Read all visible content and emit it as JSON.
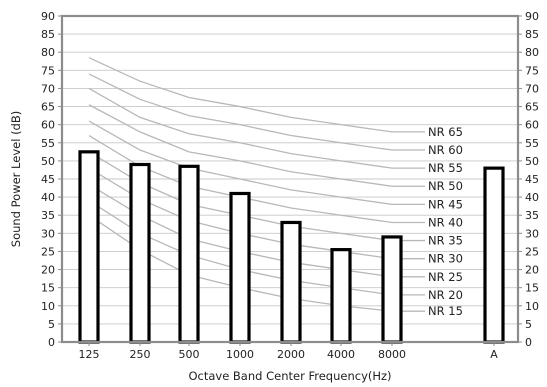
{
  "chart_data": {
    "type": "bar",
    "title": "",
    "xlabel": "Octave Band Center Frequency(Hz)",
    "ylabel": "Sound Power Level (dB)",
    "ylim": [
      0,
      90
    ],
    "y_ticks": [
      "0",
      "5",
      "10",
      "15",
      "20",
      "25",
      "30",
      "35",
      "40",
      "45",
      "50",
      "55",
      "60",
      "65",
      "70",
      "75",
      "80",
      "85",
      "90"
    ],
    "categories": [
      "125",
      "250",
      "500",
      "1000",
      "2000",
      "4000",
      "8000",
      "A"
    ],
    "values": [
      52.5,
      49,
      48.5,
      41,
      33,
      25.5,
      29,
      48
    ],
    "grid": true,
    "nr_curves": {
      "x_categories": [
        "125",
        "250",
        "500",
        "1000",
        "2000",
        "4000",
        "8000"
      ],
      "curves": [
        {
          "label": "NR 15",
          "values": [
            35,
            25.5,
            18.5,
            15,
            12,
            10,
            8.5
          ]
        },
        {
          "label": "NR 20",
          "values": [
            39,
            30,
            24,
            20,
            17,
            15,
            13
          ]
        },
        {
          "label": "NR 25",
          "values": [
            43.5,
            35,
            28.5,
            25,
            22,
            20,
            18
          ]
        },
        {
          "label": "NR 30",
          "values": [
            48,
            39.5,
            33.5,
            30,
            27,
            25,
            23
          ]
        },
        {
          "label": "NR 35",
          "values": [
            52.5,
            44,
            38,
            35,
            32,
            30,
            28
          ]
        },
        {
          "label": "NR 40",
          "values": [
            57,
            48.5,
            43,
            40,
            37,
            35,
            33
          ]
        },
        {
          "label": "NR 45",
          "values": [
            61,
            53,
            48,
            45,
            42,
            40,
            38
          ]
        },
        {
          "label": "NR 50",
          "values": [
            65.5,
            58,
            52.5,
            50,
            47,
            45,
            43
          ]
        },
        {
          "label": "NR 55",
          "values": [
            70,
            62,
            57.5,
            55,
            52,
            50,
            48
          ]
        },
        {
          "label": "NR 60",
          "values": [
            74,
            67,
            62.5,
            60,
            57,
            55,
            53
          ]
        },
        {
          "label": "NR 65",
          "values": [
            78.5,
            72,
            67.5,
            65,
            62,
            60,
            58
          ]
        }
      ]
    },
    "colors": {
      "bar_fill": "#ffffff",
      "bar_stroke": "#000000",
      "curve": "#b8b8b8",
      "grid": "#c8c8c8",
      "frame": "#8c8c8c"
    }
  }
}
